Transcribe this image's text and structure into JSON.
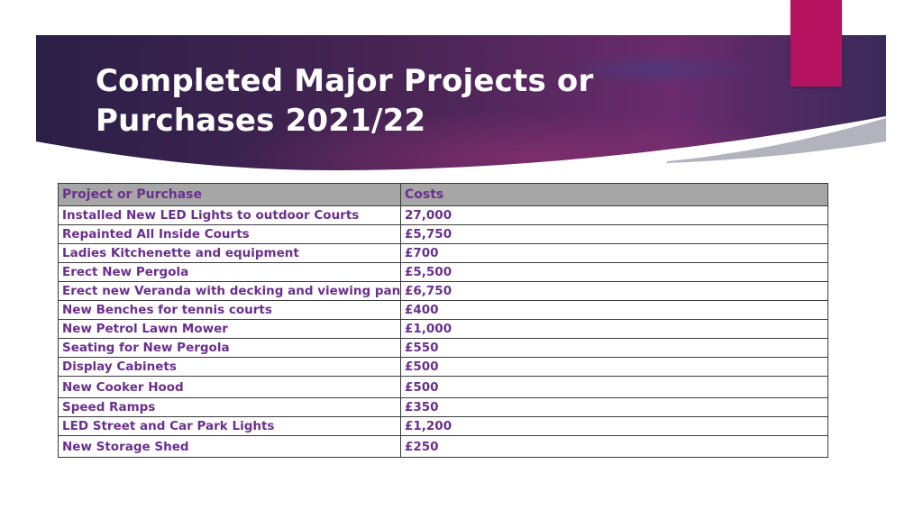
{
  "slide": {
    "title_line1": "Completed Major Projects or",
    "title_line2": "Purchases 2021/22",
    "colors": {
      "banner_dark": "#2a1f47",
      "banner_mid": "#6a2b6c",
      "accent": "#b5125f",
      "text": "#6b2f8c",
      "header_bg": "#a6a6a6"
    }
  },
  "table": {
    "headers": [
      "Project or Purchase",
      "Costs"
    ],
    "rows": [
      {
        "item": "Installed New LED Lights to outdoor Courts",
        "cost": "27,000"
      },
      {
        "item": "Repainted All Inside Courts",
        "cost": "£5,750"
      },
      {
        "item": "Ladies Kitchenette and equipment",
        "cost": "£700"
      },
      {
        "item": "Erect New Pergola",
        "cost": "£5,500"
      },
      {
        "item": "Erect new Veranda with decking and viewing panels",
        "cost": "£6,750"
      },
      {
        "item": "New Benches for tennis courts",
        "cost": "£400"
      },
      {
        "item": "New Petrol Lawn Mower",
        "cost": "£1,000"
      },
      {
        "item": "Seating for New Pergola",
        "cost": "£550"
      },
      {
        "item": "Display Cabinets",
        "cost": "£500"
      },
      {
        "item": "New Cooker Hood",
        "cost": "£500"
      },
      {
        "item": "Speed Ramps",
        "cost": "£350"
      },
      {
        "item": "LED Street and Car Park Lights",
        "cost": "£1,200"
      },
      {
        "item": "New Storage Shed",
        "cost": "£250"
      }
    ]
  }
}
